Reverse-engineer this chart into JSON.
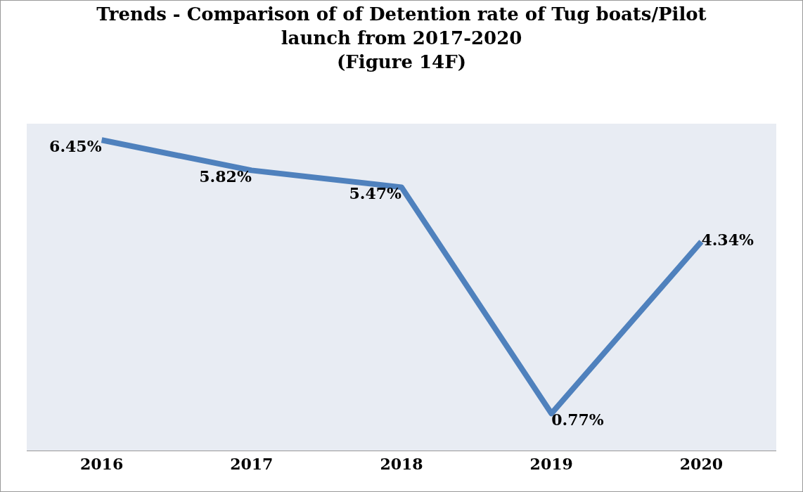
{
  "chart_data": {
    "type": "line",
    "title": "Trends - Comparison of of Detention rate of Tug boats/Pilot\nlaunch from 2017-2020\n(Figure 14F)",
    "categories": [
      "2016",
      "2017",
      "2018",
      "2019",
      "2020"
    ],
    "series": [
      {
        "color": "#4f81bd",
        "values": [
          6.45,
          5.82,
          5.47,
          0.77,
          4.34
        ],
        "value_labels": [
          "6.45%",
          "5.82%",
          "5.47%",
          "0.77%",
          "4.34%"
        ]
      }
    ],
    "grid": false,
    "legend": false,
    "marker": "none",
    "line_style": "solid"
  }
}
